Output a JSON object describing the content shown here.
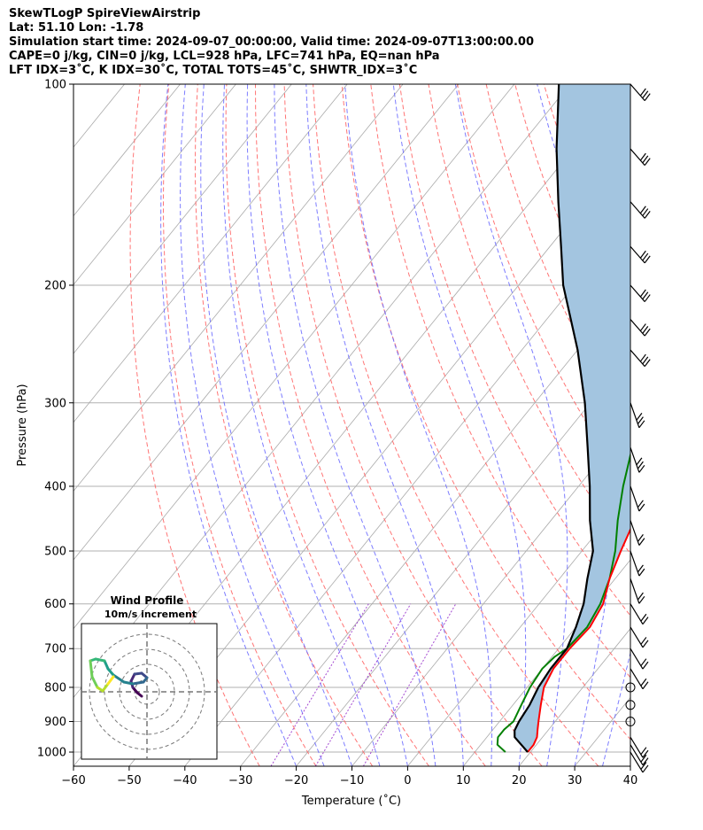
{
  "header": {
    "line1": "SkewTLogP SpireViewAirstrip",
    "line2": "Lat: 51.10   Lon: -1.78",
    "line3": "Simulation start time: 2024-09-07_00:00:00, Valid time: 2024-09-07T13:00:00.00",
    "line4": "CAPE=0 j/kg, CIN=0 j/kg, LCL=928 hPa, LFC=741 hPa, EQ=nan hPa",
    "line5": "LFT IDX=3˚C, K IDX=30˚C, TOTAL TOTS=45˚C, SHWTR_IDX=3˚C"
  },
  "colors": {
    "temperature": "#ff0000",
    "dewpoint": "#008000",
    "parcel": "#000000",
    "shade": "#a3c5e0",
    "dry_adiabat": "#ff6666",
    "moist_adiabat": "#6666ff",
    "mixing_ratio": "#9933cc",
    "isotherm": "#aaaaaa"
  },
  "chart_data": {
    "type": "line",
    "subtype": "skew-t log-p",
    "xlabel": "Temperature (˚C)",
    "ylabel": "Pressure (hPa)",
    "xlim": [
      -60,
      40
    ],
    "ylim": [
      1050,
      100
    ],
    "y_scale": "log",
    "xticks": [
      -60,
      -50,
      -40,
      -30,
      -20,
      -10,
      0,
      10,
      20,
      30,
      40
    ],
    "yticks": [
      100,
      200,
      300,
      400,
      500,
      600,
      700,
      800,
      900,
      1000
    ],
    "series": [
      {
        "key": "temperature",
        "pressure": [
          1000,
          975,
          950,
          925,
          900,
          850,
          800,
          750,
          700,
          650,
          600,
          550,
          500,
          450,
          400,
          350,
          300,
          275,
          250,
          225,
          200,
          190,
          175,
          160,
          150,
          140,
          130,
          120,
          110,
          100
        ],
        "values": [
          19.5,
          19.5,
          19,
          18,
          17,
          15,
          13,
          12,
          12,
          12.5,
          11.5,
          9,
          7,
          5,
          2,
          -2,
          -7,
          -11,
          -15,
          -16,
          -16,
          -17,
          -18,
          -20,
          -21,
          -24,
          -27,
          -31,
          -35,
          -42
        ]
      },
      {
        "key": "dewpoint",
        "pressure": [
          1000,
          975,
          950,
          925,
          900,
          850,
          800,
          750,
          720,
          700,
          650,
          600,
          550,
          500,
          450,
          400,
          350,
          300,
          275,
          250,
          240,
          225,
          200,
          190,
          175,
          165,
          150,
          140,
          120,
          100
        ],
        "values": [
          15.5,
          13,
          12,
          12,
          12.5,
          11.5,
          10.5,
          10,
          10.5,
          11.5,
          12,
          11,
          9,
          6,
          2,
          -2,
          -6,
          -12,
          -16,
          -20,
          -20,
          -22,
          -25,
          -27,
          -33,
          -35,
          -36,
          -37,
          -41,
          -45
        ]
      },
      {
        "key": "parcel",
        "pressure": [
          1000,
          950,
          928,
          900,
          850,
          800,
          750,
          700,
          650,
          600,
          550,
          500,
          450,
          400,
          350,
          300,
          250,
          200,
          175,
          150,
          125,
          100
        ],
        "values": [
          19.5,
          15,
          14,
          13.5,
          13,
          12,
          11.5,
          11.5,
          10,
          8,
          5,
          2,
          -3,
          -8,
          -14,
          -21,
          -30,
          -42,
          -48,
          -55,
          -63,
          -72
        ]
      }
    ],
    "wind_barbs_pressure": [
      100,
      125,
      150,
      175,
      200,
      225,
      250,
      300,
      350,
      400,
      450,
      500,
      550,
      600,
      650,
      700,
      750,
      800,
      850,
      900,
      950,
      975,
      1000
    ],
    "inset": {
      "title": "Wind Profile",
      "subtitle": "10m/s increment"
    }
  }
}
